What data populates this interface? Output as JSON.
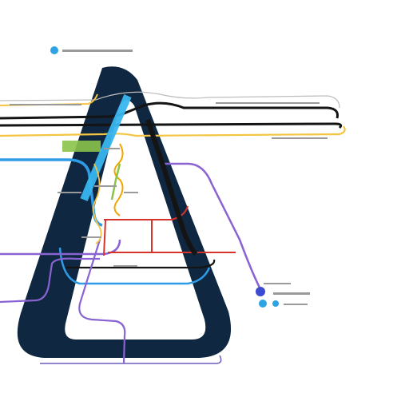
{
  "title": "",
  "colors": {
    "background": "#ffffff",
    "frame": "#0f2740",
    "black": "#141414",
    "yellow": "#f4c542",
    "orange": "#f0a500",
    "blue": "#2e9be6",
    "cyan": "#38b6ef",
    "purple": "#8a63d2",
    "violet": "#6a3fc8",
    "red": "#d6332b",
    "green": "#8bc34a",
    "grey": "#9a9a9a",
    "legend_blue": "#3b4ad1"
  },
  "legend": [
    {
      "icon": "cyan-dot-icon",
      "color": "#2ea3e3"
    },
    {
      "icon": "indigo-dot-icon",
      "color": "#3b4ad1"
    },
    {
      "icon": "blue-dot-icon",
      "color": "#2ea3e3"
    }
  ]
}
